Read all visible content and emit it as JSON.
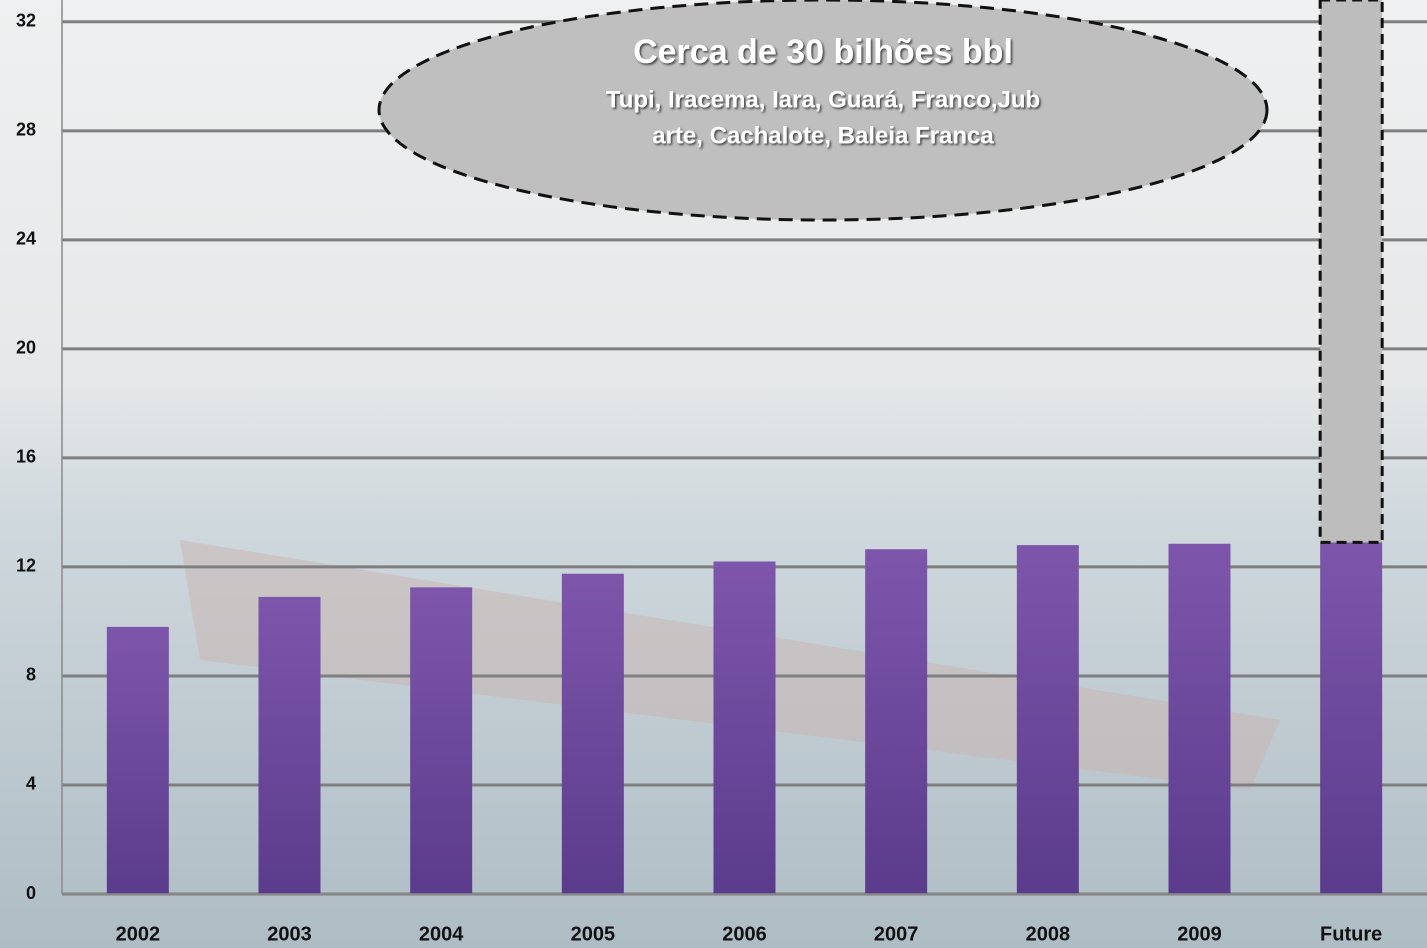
{
  "chart_data": {
    "type": "stacked_bar",
    "categories": [
      "2002",
      "2003",
      "2004",
      "2005",
      "2006",
      "2007",
      "2008",
      "2009",
      "Future"
    ],
    "series": [
      {
        "color": "#7652a6",
        "values": [
          9.8,
          10.9,
          11.25,
          11.75,
          12.2,
          12.65,
          12.8,
          12.85,
          12.9
        ]
      },
      {
        "color": "#bdbdbd",
        "values": [
          null,
          null,
          null,
          null,
          null,
          null,
          null,
          null,
          19.9
        ]
      }
    ],
    "ylim": [
      0,
      32.8
    ],
    "yticks": [
      0,
      4,
      8,
      12,
      16,
      20,
      24,
      28,
      32
    ],
    "grid": true,
    "annotation": {
      "title": "Cerca de 30 bilhões bbl",
      "lines": [
        "Tupi, Iracema, Iara, Guará, Franco,Jub",
        "arte, Cachalote, Baleia Franca"
      ]
    }
  }
}
